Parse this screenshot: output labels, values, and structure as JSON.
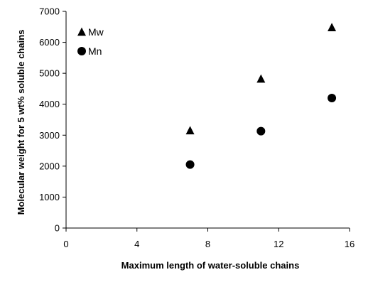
{
  "chart_data": {
    "type": "scatter",
    "xlabel": "Maximum length of water-soluble chains",
    "ylabel": "Molecular weight for 5 wt% soluble chains",
    "xlim": [
      0,
      16
    ],
    "ylim": [
      0,
      7000
    ],
    "x_ticks": [
      "0",
      "4",
      "8",
      "12",
      "16"
    ],
    "y_ticks": [
      "0",
      "1000",
      "2000",
      "3000",
      "4000",
      "5000",
      "6000",
      "7000"
    ],
    "grid": false,
    "legend_position": "top-left",
    "series": [
      {
        "name": "Mw",
        "marker": "triangle",
        "color": "#000000",
        "points": [
          {
            "x": 7,
            "y": 3150
          },
          {
            "x": 11,
            "y": 4820
          },
          {
            "x": 15,
            "y": 6480
          }
        ]
      },
      {
        "name": "Mn",
        "marker": "circle",
        "color": "#000000",
        "points": [
          {
            "x": 7,
            "y": 2050
          },
          {
            "x": 11,
            "y": 3130
          },
          {
            "x": 15,
            "y": 4200
          }
        ]
      }
    ]
  }
}
